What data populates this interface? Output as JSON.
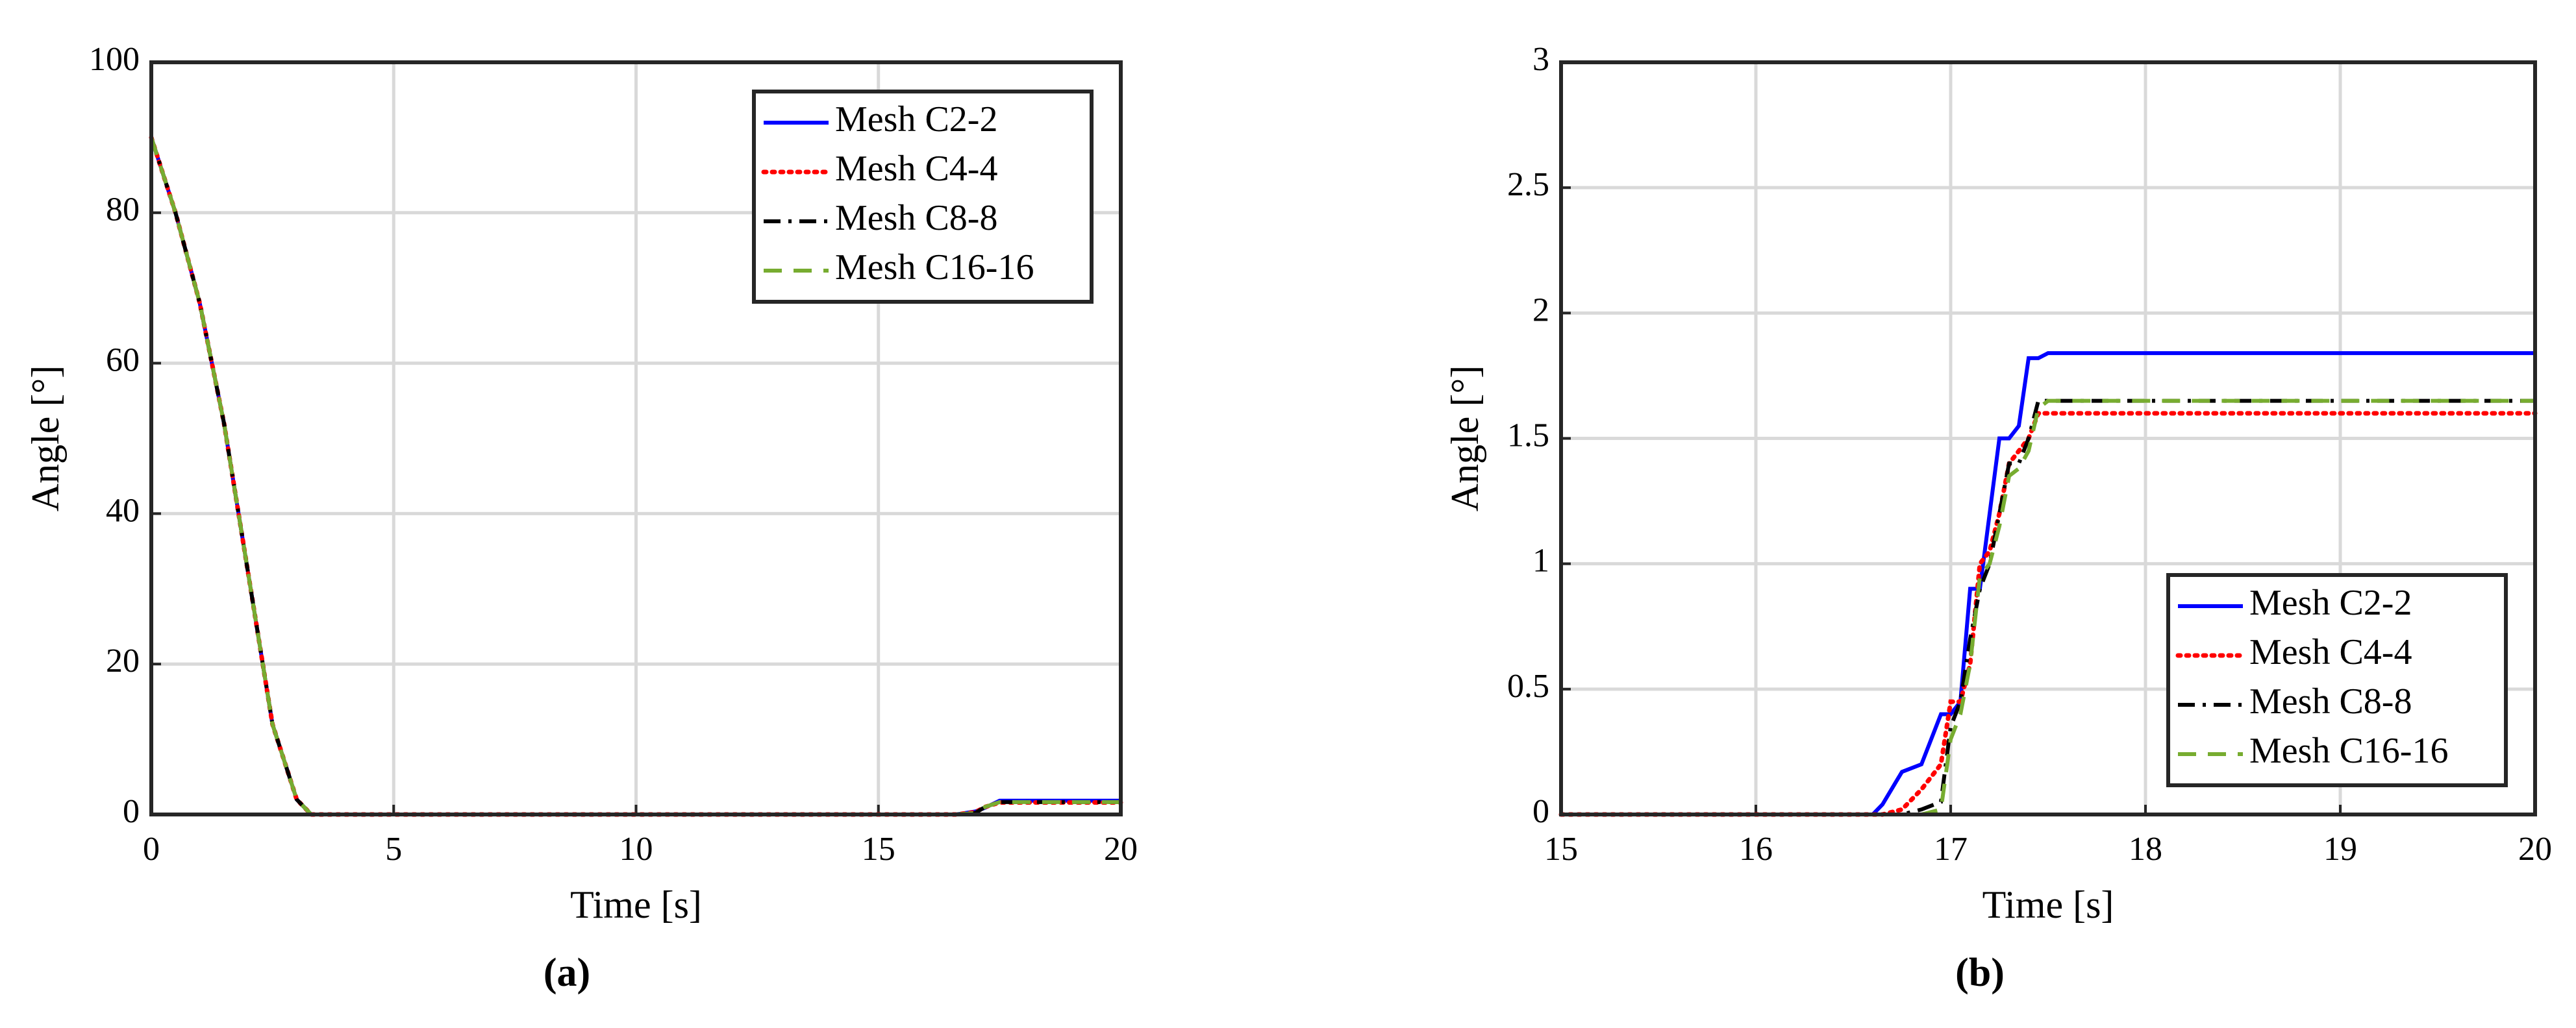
{
  "chart_data": [
    {
      "type": "line",
      "caption": "(a)",
      "x_label": "Time [s]",
      "y_label": "Angle [°]",
      "xlim": [
        0,
        20
      ],
      "ylim": [
        0,
        100
      ],
      "xticks": [
        0,
        5,
        10,
        15,
        20
      ],
      "yticks": [
        0,
        20,
        40,
        60,
        80,
        100
      ],
      "grid": true,
      "legend": "upper right",
      "x": [
        0,
        0.5,
        1,
        1.5,
        2,
        2.5,
        3,
        3.3,
        5,
        10,
        15,
        16.6,
        17,
        17.2,
        17.5,
        18,
        20
      ],
      "series": [
        {
          "name": "Mesh C2-2",
          "color": "#0000ff",
          "style": "solid",
          "values": [
            90,
            80,
            68,
            52,
            32,
            12,
            2,
            0,
            0,
            0,
            0,
            0,
            0.4,
            0.9,
            1.83,
            1.83,
            1.83
          ]
        },
        {
          "name": "Mesh C4-4",
          "color": "#ff0000",
          "style": "dotted",
          "values": [
            90,
            80,
            68,
            52,
            32,
            12,
            2,
            0,
            0,
            0,
            0,
            0,
            0.3,
            1.0,
            1.6,
            1.6,
            1.6
          ]
        },
        {
          "name": "Mesh C8-8",
          "color": "#000000",
          "style": "dashdot",
          "values": [
            90,
            80,
            68,
            52,
            32,
            12,
            2,
            0,
            0,
            0,
            0,
            0,
            0.2,
            1.0,
            1.65,
            1.65,
            1.65
          ]
        },
        {
          "name": "Mesh C16-16",
          "color": "#77ac30",
          "style": "dashed",
          "values": [
            90,
            80,
            68,
            52,
            32,
            12,
            2,
            0,
            0,
            0,
            0,
            0,
            0.2,
            1.0,
            1.65,
            1.65,
            1.65
          ]
        }
      ]
    },
    {
      "type": "line",
      "caption": "(b)",
      "x_label": "Time [s]",
      "y_label": "Angle [°]",
      "xlim": [
        15,
        20
      ],
      "ylim": [
        0,
        3
      ],
      "xticks": [
        15,
        16,
        17,
        18,
        19,
        20
      ],
      "yticks": [
        0,
        0.5,
        1,
        1.5,
        2,
        2.5,
        3
      ],
      "grid": true,
      "legend": "lower right",
      "x": [
        15,
        16,
        16.6,
        16.65,
        16.75,
        16.85,
        16.95,
        17,
        17.05,
        17.1,
        17.15,
        17.2,
        17.25,
        17.3,
        17.35,
        17.4,
        17.45,
        17.5,
        18,
        20
      ],
      "series": [
        {
          "name": "Mesh C2-2",
          "color": "#0000ff",
          "style": "solid",
          "values": [
            0,
            0,
            0,
            0.04,
            0.17,
            0.2,
            0.4,
            0.4,
            0.45,
            0.9,
            0.9,
            1.2,
            1.5,
            1.5,
            1.55,
            1.82,
            1.82,
            1.84,
            1.84,
            1.84
          ]
        },
        {
          "name": "Mesh C4-4",
          "color": "#ff0000",
          "style": "dotted",
          "values": [
            0,
            0,
            0,
            0,
            0.02,
            0.1,
            0.2,
            0.45,
            0.45,
            0.6,
            1.0,
            1.05,
            1.2,
            1.4,
            1.45,
            1.5,
            1.6,
            1.6,
            1.6,
            1.6
          ]
        },
        {
          "name": "Mesh C8-8",
          "color": "#000000",
          "style": "dashdot",
          "values": [
            0,
            0,
            0,
            0,
            0,
            0.02,
            0.05,
            0.35,
            0.45,
            0.7,
            0.9,
            1.0,
            1.2,
            1.4,
            1.4,
            1.5,
            1.65,
            1.65,
            1.65,
            1.65
          ]
        },
        {
          "name": "Mesh C16-16",
          "color": "#77ac30",
          "style": "dashed",
          "values": [
            0,
            0,
            0,
            0,
            0,
            0,
            0.02,
            0.3,
            0.4,
            0.6,
            0.95,
            1.0,
            1.15,
            1.35,
            1.38,
            1.45,
            1.62,
            1.65,
            1.65,
            1.65
          ]
        }
      ]
    }
  ]
}
